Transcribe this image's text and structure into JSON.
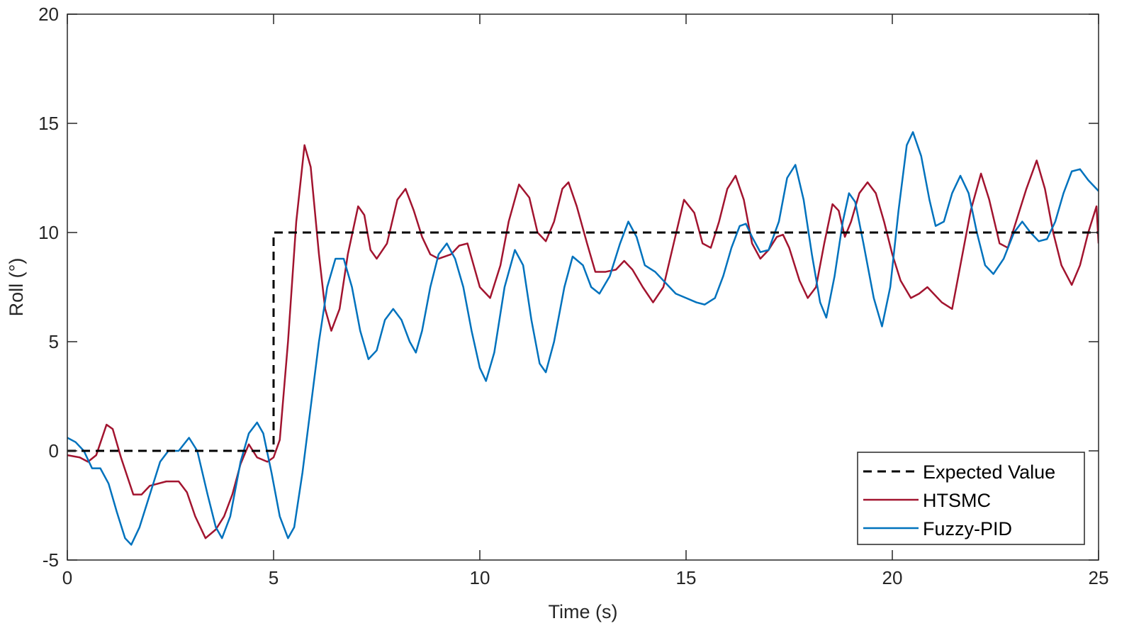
{
  "chart_data": {
    "type": "line",
    "title": "",
    "xlabel": "Time (s)",
    "ylabel": "Roll (°)",
    "xlim": [
      0,
      25
    ],
    "ylim": [
      -5,
      20
    ],
    "xticks": [
      0,
      5,
      10,
      15,
      20,
      25
    ],
    "xtick_labels": [
      "0",
      "5",
      "10",
      "15",
      "20",
      "25"
    ],
    "yticks": [
      -5,
      0,
      5,
      10,
      15,
      20
    ],
    "ytick_labels": [
      "-5",
      "0",
      "5",
      "10",
      "15",
      "20"
    ],
    "grid": false,
    "legend_position": "bottom-right",
    "series": [
      {
        "name": "Expected Value",
        "color": "#000000",
        "style": "dashed",
        "points": [
          [
            0,
            0
          ],
          [
            5,
            0
          ],
          [
            5,
            10
          ],
          [
            25,
            10
          ]
        ]
      },
      {
        "name": "HTSMC",
        "color": "#A2142F",
        "style": "solid",
        "points": [
          [
            0,
            -0.2
          ],
          [
            0.3,
            -0.3
          ],
          [
            0.5,
            -0.5
          ],
          [
            0.7,
            -0.2
          ],
          [
            0.95,
            1.2
          ],
          [
            1.1,
            1.0
          ],
          [
            1.3,
            -0.3
          ],
          [
            1.6,
            -2.0
          ],
          [
            1.8,
            -2.0
          ],
          [
            2.0,
            -1.6
          ],
          [
            2.4,
            -1.4
          ],
          [
            2.7,
            -1.4
          ],
          [
            2.9,
            -1.9
          ],
          [
            3.1,
            -3.0
          ],
          [
            3.35,
            -4.0
          ],
          [
            3.6,
            -3.6
          ],
          [
            3.8,
            -3.0
          ],
          [
            4.0,
            -2.0
          ],
          [
            4.2,
            -0.6
          ],
          [
            4.4,
            0.3
          ],
          [
            4.6,
            -0.3
          ],
          [
            4.85,
            -0.5
          ],
          [
            5.0,
            -0.3
          ],
          [
            5.15,
            0.5
          ],
          [
            5.35,
            5.0
          ],
          [
            5.55,
            10.5
          ],
          [
            5.75,
            14.0
          ],
          [
            5.9,
            13.0
          ],
          [
            6.1,
            9.0
          ],
          [
            6.25,
            6.5
          ],
          [
            6.4,
            5.5
          ],
          [
            6.6,
            6.5
          ],
          [
            6.8,
            9.0
          ],
          [
            7.05,
            11.2
          ],
          [
            7.2,
            10.8
          ],
          [
            7.35,
            9.2
          ],
          [
            7.5,
            8.8
          ],
          [
            7.75,
            9.5
          ],
          [
            8.0,
            11.5
          ],
          [
            8.2,
            12.0
          ],
          [
            8.4,
            11.0
          ],
          [
            8.6,
            9.8
          ],
          [
            8.8,
            9.0
          ],
          [
            9.0,
            8.8
          ],
          [
            9.3,
            9.0
          ],
          [
            9.5,
            9.4
          ],
          [
            9.7,
            9.5
          ],
          [
            9.85,
            8.5
          ],
          [
            10.0,
            7.5
          ],
          [
            10.25,
            7.0
          ],
          [
            10.5,
            8.5
          ],
          [
            10.7,
            10.5
          ],
          [
            10.95,
            12.2
          ],
          [
            11.2,
            11.6
          ],
          [
            11.4,
            10.0
          ],
          [
            11.6,
            9.6
          ],
          [
            11.8,
            10.5
          ],
          [
            12.0,
            12.0
          ],
          [
            12.15,
            12.3
          ],
          [
            12.35,
            11.2
          ],
          [
            12.6,
            9.5
          ],
          [
            12.8,
            8.2
          ],
          [
            13.05,
            8.2
          ],
          [
            13.3,
            8.3
          ],
          [
            13.5,
            8.7
          ],
          [
            13.7,
            8.3
          ],
          [
            13.95,
            7.5
          ],
          [
            14.2,
            6.8
          ],
          [
            14.45,
            7.5
          ],
          [
            14.7,
            9.5
          ],
          [
            14.95,
            11.5
          ],
          [
            15.2,
            10.9
          ],
          [
            15.4,
            9.5
          ],
          [
            15.6,
            9.3
          ],
          [
            15.8,
            10.5
          ],
          [
            16.0,
            12.0
          ],
          [
            16.2,
            12.6
          ],
          [
            16.4,
            11.5
          ],
          [
            16.6,
            9.5
          ],
          [
            16.8,
            8.8
          ],
          [
            17.0,
            9.2
          ],
          [
            17.2,
            9.8
          ],
          [
            17.35,
            9.9
          ],
          [
            17.5,
            9.3
          ],
          [
            17.75,
            7.8
          ],
          [
            17.95,
            7.0
          ],
          [
            18.15,
            7.5
          ],
          [
            18.35,
            9.5
          ],
          [
            18.55,
            11.3
          ],
          [
            18.7,
            11.0
          ],
          [
            18.85,
            9.8
          ],
          [
            19.0,
            10.5
          ],
          [
            19.2,
            11.8
          ],
          [
            19.4,
            12.3
          ],
          [
            19.6,
            11.8
          ],
          [
            19.8,
            10.5
          ],
          [
            20.0,
            9.0
          ],
          [
            20.2,
            7.8
          ],
          [
            20.45,
            7.0
          ],
          [
            20.65,
            7.2
          ],
          [
            20.85,
            7.5
          ],
          [
            21.0,
            7.2
          ],
          [
            21.2,
            6.8
          ],
          [
            21.45,
            6.5
          ],
          [
            21.65,
            8.5
          ],
          [
            21.9,
            11.0
          ],
          [
            22.15,
            12.7
          ],
          [
            22.35,
            11.5
          ],
          [
            22.6,
            9.5
          ],
          [
            22.8,
            9.3
          ],
          [
            23.0,
            10.5
          ],
          [
            23.25,
            12.0
          ],
          [
            23.5,
            13.3
          ],
          [
            23.7,
            12.0
          ],
          [
            23.9,
            10.0
          ],
          [
            24.1,
            8.5
          ],
          [
            24.35,
            7.6
          ],
          [
            24.55,
            8.5
          ],
          [
            24.75,
            10.0
          ],
          [
            24.95,
            11.2
          ],
          [
            25.0,
            9.5
          ]
        ]
      },
      {
        "name": "Fuzzy-PID",
        "color": "#0072BD",
        "style": "solid",
        "points": [
          [
            0,
            0.6
          ],
          [
            0.2,
            0.4
          ],
          [
            0.4,
            0.0
          ],
          [
            0.6,
            -0.8
          ],
          [
            0.8,
            -0.8
          ],
          [
            1.0,
            -1.5
          ],
          [
            1.2,
            -2.8
          ],
          [
            1.4,
            -4.0
          ],
          [
            1.55,
            -4.3
          ],
          [
            1.75,
            -3.5
          ],
          [
            2.0,
            -2.0
          ],
          [
            2.25,
            -0.5
          ],
          [
            2.45,
            0.0
          ],
          [
            2.7,
            0.0
          ],
          [
            2.95,
            0.6
          ],
          [
            3.15,
            0.0
          ],
          [
            3.4,
            -2.0
          ],
          [
            3.6,
            -3.5
          ],
          [
            3.75,
            -4.0
          ],
          [
            3.95,
            -3.0
          ],
          [
            4.2,
            -0.5
          ],
          [
            4.4,
            0.8
          ],
          [
            4.6,
            1.3
          ],
          [
            4.75,
            0.8
          ],
          [
            4.95,
            -1.0
          ],
          [
            5.15,
            -3.0
          ],
          [
            5.35,
            -4.0
          ],
          [
            5.5,
            -3.5
          ],
          [
            5.7,
            -1.0
          ],
          [
            5.9,
            2.0
          ],
          [
            6.1,
            5.0
          ],
          [
            6.3,
            7.5
          ],
          [
            6.5,
            8.8
          ],
          [
            6.7,
            8.8
          ],
          [
            6.9,
            7.5
          ],
          [
            7.1,
            5.5
          ],
          [
            7.3,
            4.2
          ],
          [
            7.5,
            4.6
          ],
          [
            7.7,
            6.0
          ],
          [
            7.9,
            6.5
          ],
          [
            8.1,
            6.0
          ],
          [
            8.3,
            5.0
          ],
          [
            8.45,
            4.5
          ],
          [
            8.6,
            5.5
          ],
          [
            8.8,
            7.5
          ],
          [
            9.0,
            9.0
          ],
          [
            9.2,
            9.5
          ],
          [
            9.4,
            8.8
          ],
          [
            9.6,
            7.5
          ],
          [
            9.8,
            5.5
          ],
          [
            10.0,
            3.8
          ],
          [
            10.15,
            3.2
          ],
          [
            10.35,
            4.5
          ],
          [
            10.6,
            7.5
          ],
          [
            10.85,
            9.2
          ],
          [
            11.05,
            8.5
          ],
          [
            11.25,
            6.0
          ],
          [
            11.45,
            4.0
          ],
          [
            11.6,
            3.6
          ],
          [
            11.8,
            5.0
          ],
          [
            12.05,
            7.5
          ],
          [
            12.25,
            8.9
          ],
          [
            12.5,
            8.5
          ],
          [
            12.7,
            7.5
          ],
          [
            12.9,
            7.2
          ],
          [
            13.15,
            8.0
          ],
          [
            13.4,
            9.5
          ],
          [
            13.6,
            10.5
          ],
          [
            13.8,
            9.8
          ],
          [
            14.0,
            8.5
          ],
          [
            14.25,
            8.2
          ],
          [
            14.5,
            7.7
          ],
          [
            14.75,
            7.2
          ],
          [
            15.0,
            7.0
          ],
          [
            15.25,
            6.8
          ],
          [
            15.45,
            6.7
          ],
          [
            15.7,
            7.0
          ],
          [
            15.9,
            8.0
          ],
          [
            16.1,
            9.3
          ],
          [
            16.3,
            10.3
          ],
          [
            16.45,
            10.4
          ],
          [
            16.6,
            9.8
          ],
          [
            16.8,
            9.1
          ],
          [
            17.0,
            9.2
          ],
          [
            17.25,
            10.5
          ],
          [
            17.45,
            12.5
          ],
          [
            17.65,
            13.1
          ],
          [
            17.85,
            11.5
          ],
          [
            18.05,
            9.0
          ],
          [
            18.25,
            6.8
          ],
          [
            18.4,
            6.1
          ],
          [
            18.6,
            8.0
          ],
          [
            18.8,
            10.5
          ],
          [
            18.95,
            11.8
          ],
          [
            19.1,
            11.4
          ],
          [
            19.3,
            9.5
          ],
          [
            19.55,
            7.0
          ],
          [
            19.75,
            5.7
          ],
          [
            19.95,
            7.5
          ],
          [
            20.15,
            11.0
          ],
          [
            20.35,
            14.0
          ],
          [
            20.5,
            14.6
          ],
          [
            20.7,
            13.5
          ],
          [
            20.9,
            11.5
          ],
          [
            21.05,
            10.3
          ],
          [
            21.25,
            10.5
          ],
          [
            21.45,
            11.8
          ],
          [
            21.65,
            12.6
          ],
          [
            21.85,
            11.8
          ],
          [
            22.05,
            10.0
          ],
          [
            22.25,
            8.5
          ],
          [
            22.45,
            8.1
          ],
          [
            22.7,
            8.8
          ],
          [
            22.95,
            10.0
          ],
          [
            23.15,
            10.5
          ],
          [
            23.35,
            10.0
          ],
          [
            23.55,
            9.6
          ],
          [
            23.75,
            9.7
          ],
          [
            23.95,
            10.5
          ],
          [
            24.15,
            11.8
          ],
          [
            24.35,
            12.8
          ],
          [
            24.55,
            12.9
          ],
          [
            24.75,
            12.4
          ],
          [
            25.0,
            11.9
          ]
        ]
      }
    ]
  }
}
